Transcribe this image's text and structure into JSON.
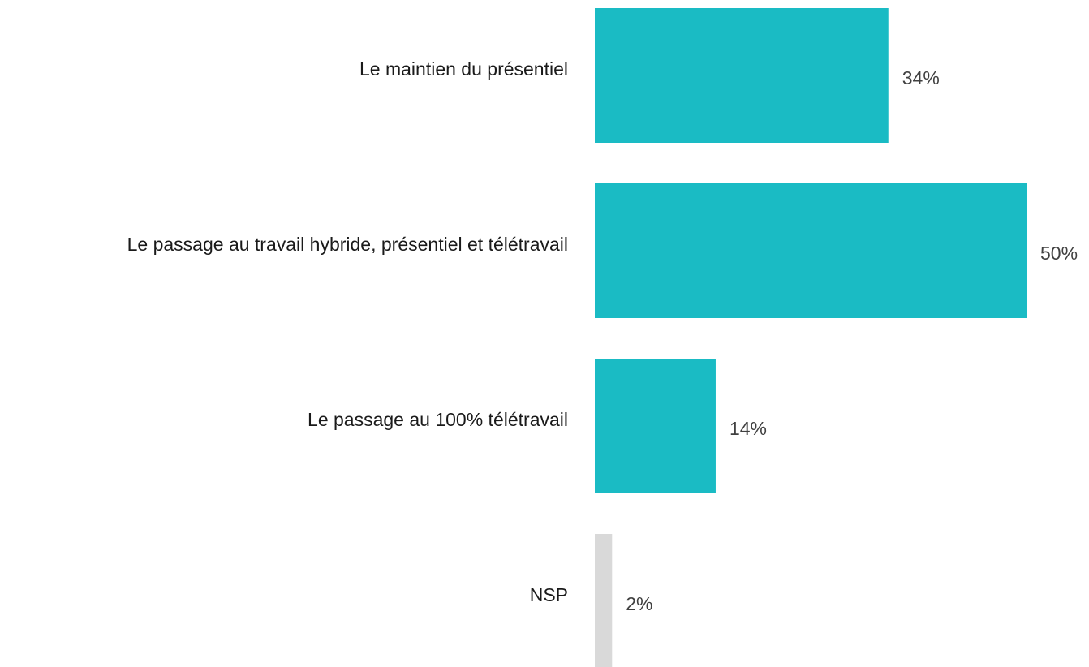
{
  "chart_data": {
    "type": "hbar",
    "categories": [
      "Le maintien du présentiel",
      "Le passage au travail hybride, présentiel et télétravail",
      "Le passage au 100% télétravail",
      "NSP"
    ],
    "values": [
      34,
      50,
      14,
      2
    ],
    "value_labels": [
      "34%",
      "50%",
      "14%",
      "2%"
    ],
    "colors": [
      "#1abbc4",
      "#1abbc4",
      "#1abbc4",
      "#d9d9d9"
    ]
  }
}
